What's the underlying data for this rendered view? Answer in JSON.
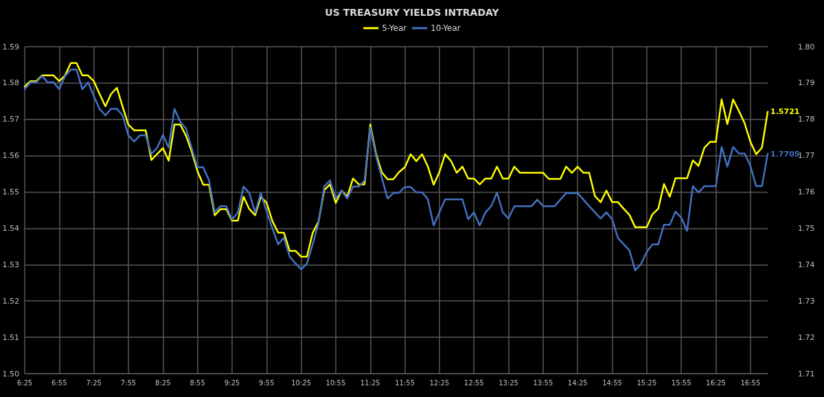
{
  "chart_data": {
    "type": "line",
    "title": "US TREASURY YIELDS INTRADAY",
    "categories": [
      "6:25",
      null,
      null,
      null,
      null,
      null,
      "6:55",
      null,
      null,
      null,
      null,
      null,
      "7:25",
      null,
      null,
      null,
      null,
      null,
      "7:55",
      null,
      null,
      null,
      null,
      null,
      "8:25",
      null,
      null,
      null,
      null,
      null,
      "8:55",
      null,
      null,
      null,
      null,
      null,
      "9:25",
      null,
      null,
      null,
      null,
      null,
      "9:55",
      null,
      null,
      null,
      null,
      null,
      "10:25",
      null,
      null,
      null,
      null,
      null,
      "10:55",
      null,
      null,
      null,
      null,
      null,
      "11:25",
      null,
      null,
      null,
      null,
      null,
      "11:55",
      null,
      null,
      null,
      null,
      null,
      "12:25",
      null,
      null,
      null,
      null,
      null,
      "12:55",
      null,
      null,
      null,
      null,
      null,
      "13:25",
      null,
      null,
      null,
      null,
      null,
      "13:55",
      null,
      null,
      null,
      null,
      null,
      "14:25",
      null,
      null,
      null,
      null,
      null,
      "14:55",
      null,
      null,
      null,
      null,
      null,
      "15:25",
      null,
      null,
      null,
      null,
      null,
      "15:55",
      null,
      null,
      null,
      null,
      null,
      "16:25",
      null,
      null,
      null,
      null,
      null,
      "16:55",
      null,
      null,
      null
    ],
    "series": [
      {
        "name": "5-Year",
        "color": "#ffff00",
        "values": [
          1.579,
          1.5805,
          1.5805,
          1.5821,
          1.5821,
          1.5821,
          1.5805,
          1.5821,
          1.5855,
          1.5855,
          1.5821,
          1.5821,
          1.5805,
          1.577,
          1.5736,
          1.577,
          1.5787,
          1.5735,
          1.5685,
          1.567,
          1.567,
          1.567,
          1.5588,
          1.5605,
          1.5621,
          1.5586,
          1.5686,
          1.5686,
          1.5655,
          1.5611,
          1.5557,
          1.552,
          1.552,
          1.5436,
          1.5453,
          1.5453,
          1.5421,
          1.5421,
          1.5487,
          1.5453,
          1.5436,
          1.5487,
          1.547,
          1.542,
          1.5388,
          1.5388,
          1.5338,
          1.5338,
          1.5322,
          1.5322,
          1.5388,
          1.5418,
          1.5505,
          1.5521,
          1.547,
          1.5504,
          1.5487,
          1.5537,
          1.5521,
          1.5521,
          1.5686,
          1.5605,
          1.5554,
          1.5535,
          1.5535,
          1.5555,
          1.5568,
          1.5604,
          1.5585,
          1.5604,
          1.557,
          1.552,
          1.5555,
          1.5604,
          1.5586,
          1.5553,
          1.557,
          1.5537,
          1.5537,
          1.5521,
          1.5537,
          1.5537,
          1.557,
          1.5537,
          1.5537,
          1.557,
          1.5553,
          1.5553,
          1.5553,
          1.5553,
          1.5553,
          1.5536,
          1.5536,
          1.5536,
          1.557,
          1.5553,
          1.557,
          1.5553,
          1.5553,
          1.5489,
          1.5472,
          1.5504,
          1.5472,
          1.5472,
          1.5454,
          1.5437,
          1.5403,
          1.5403,
          1.5403,
          1.5439,
          1.5454,
          1.5522,
          1.5487,
          1.5538,
          1.5538,
          1.5538,
          1.5587,
          1.5572,
          1.5622,
          1.5638,
          1.5638,
          1.5755,
          1.5687,
          1.5755,
          1.5723,
          1.5689,
          1.5638,
          1.5604,
          1.5622,
          1.5721
        ],
        "value_labels": [
          null,
          null,
          null,
          null,
          null,
          null,
          null,
          null,
          null,
          null,
          null,
          null,
          null,
          null,
          null,
          null,
          null,
          null,
          null,
          null,
          null,
          null,
          null,
          null,
          null,
          null,
          null,
          null,
          null,
          null,
          null,
          null,
          null,
          null,
          null,
          null,
          null,
          null,
          null,
          null,
          null,
          null,
          null,
          null,
          null,
          null,
          null,
          null,
          null,
          null,
          null,
          null,
          null,
          null,
          null,
          null,
          null,
          null,
          null,
          null,
          null,
          null,
          null,
          null,
          null,
          null,
          null,
          null,
          null,
          null,
          null,
          null,
          null,
          null,
          null,
          null,
          null,
          null,
          null,
          null,
          null,
          null,
          null,
          null,
          null,
          null,
          null,
          null,
          null,
          null,
          null,
          null,
          null,
          null,
          null,
          null,
          null,
          null,
          null,
          null,
          null,
          null,
          null,
          null,
          null,
          null,
          null,
          null,
          null,
          null,
          null,
          null,
          null,
          null,
          null,
          null,
          null,
          null,
          null,
          null,
          null,
          null,
          null,
          null,
          null,
          null,
          null,
          null,
          null,
          "1.5721"
        ]
      },
      {
        "name": "10-Year",
        "color": "#4472c4",
        "axis": "y2",
        "values": [
          1.7883,
          1.7902,
          1.7902,
          1.7919,
          1.7902,
          1.7902,
          1.7883,
          1.7919,
          1.7937,
          1.7937,
          1.7883,
          1.7902,
          1.7864,
          1.7829,
          1.7811,
          1.7829,
          1.7829,
          1.7811,
          1.7756,
          1.7739,
          1.7756,
          1.7756,
          1.7705,
          1.7722,
          1.7757,
          1.7722,
          1.7829,
          1.7794,
          1.7775,
          1.7721,
          1.7668,
          1.7668,
          1.7632,
          1.7545,
          1.7561,
          1.7561,
          1.7524,
          1.7543,
          1.7615,
          1.7597,
          1.7543,
          1.7597,
          1.7546,
          1.75,
          1.7456,
          1.7474,
          1.7422,
          1.7404,
          1.7387,
          1.7403,
          1.7456,
          1.7514,
          1.7615,
          1.7632,
          1.7582,
          1.7604,
          1.7582,
          1.7615,
          1.7615,
          1.7632,
          1.7778,
          1.7699,
          1.7639,
          1.7582,
          1.7597,
          1.7598,
          1.7614,
          1.7614,
          1.7599,
          1.7599,
          1.758,
          1.7508,
          1.7544,
          1.758,
          1.758,
          1.758,
          1.758,
          1.7525,
          1.7544,
          1.7508,
          1.7544,
          1.7561,
          1.7598,
          1.7544,
          1.7527,
          1.7561,
          1.7561,
          1.7561,
          1.7561,
          1.7579,
          1.7561,
          1.7561,
          1.7561,
          1.7579,
          1.7597,
          1.7597,
          1.7597,
          1.7579,
          1.7561,
          1.7544,
          1.7527,
          1.7544,
          1.7525,
          1.7473,
          1.7456,
          1.7439,
          1.7384,
          1.7402,
          1.7435,
          1.7456,
          1.7456,
          1.751,
          1.751,
          1.7546,
          1.7529,
          1.7493,
          1.7616,
          1.7599,
          1.7616,
          1.7616,
          1.7616,
          1.7724,
          1.767,
          1.7724,
          1.7706,
          1.7706,
          1.7672,
          1.7616,
          1.7616,
          1.7705
        ],
        "value_labels": [
          null,
          null,
          null,
          null,
          null,
          null,
          null,
          null,
          null,
          null,
          null,
          null,
          null,
          null,
          null,
          null,
          null,
          null,
          null,
          null,
          null,
          null,
          null,
          null,
          null,
          null,
          null,
          null,
          null,
          null,
          null,
          null,
          null,
          null,
          null,
          null,
          null,
          null,
          null,
          null,
          null,
          null,
          null,
          null,
          null,
          null,
          null,
          null,
          null,
          null,
          null,
          null,
          null,
          null,
          null,
          null,
          null,
          null,
          null,
          null,
          null,
          null,
          null,
          null,
          null,
          null,
          null,
          null,
          null,
          null,
          null,
          null,
          null,
          null,
          null,
          null,
          null,
          null,
          null,
          null,
          null,
          null,
          null,
          null,
          null,
          null,
          null,
          null,
          null,
          null,
          null,
          null,
          null,
          null,
          null,
          null,
          null,
          null,
          null,
          null,
          null,
          null,
          null,
          null,
          null,
          null,
          null,
          null,
          null,
          null,
          null,
          null,
          null,
          null,
          null,
          null,
          null,
          null,
          null,
          null,
          null,
          null,
          null,
          null,
          null,
          null,
          null,
          null,
          null,
          "1.7705"
        ]
      }
    ],
    "ylim": [
      1.5,
      1.59
    ],
    "yticks": [
      {
        "value": 1.5,
        "label": "1.50"
      },
      1.51,
      1.52,
      1.53,
      1.54,
      1.55,
      1.56,
      1.57,
      1.58,
      1.59
    ],
    "y2lim": [
      1.71,
      1.8
    ],
    "y2ticks": [
      1.71,
      1.72,
      1.73,
      1.74,
      1.75,
      1.76,
      1.77,
      1.78,
      1.79,
      {
        "value": 1.8,
        "label": "1.80"
      }
    ],
    "grid": true,
    "legend": "top",
    "marker": "none",
    "line_style": "solid"
  }
}
